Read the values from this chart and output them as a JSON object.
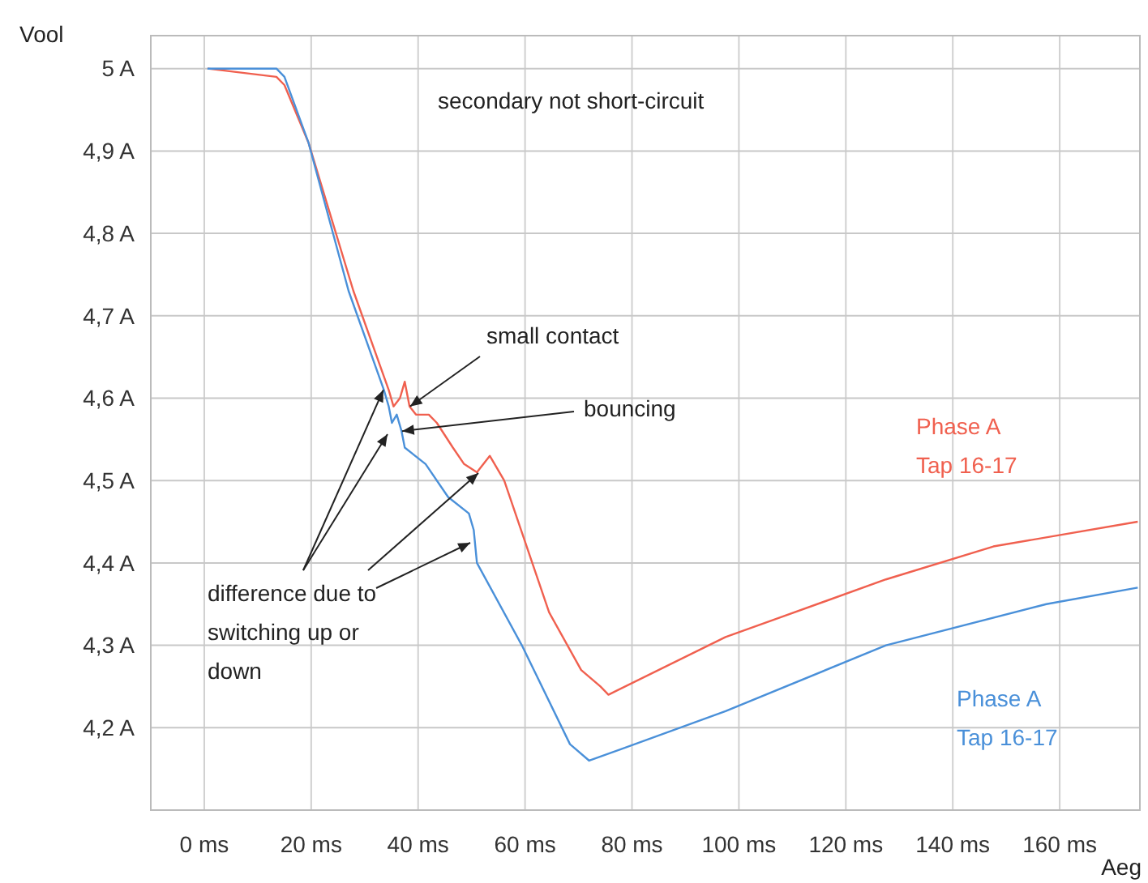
{
  "chart_data": {
    "type": "line",
    "xlabel": "Aeg",
    "ylabel": "Vool",
    "xlim": [
      -10,
      175
    ],
    "xticks": [
      {
        "value": 0,
        "label": "0 ms"
      },
      {
        "value": 20,
        "label": "20 ms"
      },
      {
        "value": 40,
        "label": "40 ms"
      },
      {
        "value": 60,
        "label": "60 ms"
      },
      {
        "value": 80,
        "label": "80 ms"
      },
      {
        "value": 100,
        "label": "100 ms"
      },
      {
        "value": 120,
        "label": "120 ms"
      },
      {
        "value": 140,
        "label": "140 ms"
      },
      {
        "value": 160,
        "label": "160 ms"
      }
    ],
    "ylim": [
      4.1,
      5.04
    ],
    "yticks": [
      {
        "value": 4.1,
        "label": null
      },
      {
        "value": 4.2,
        "label": "4,2 A"
      },
      {
        "value": 4.3,
        "label": "4,3 A"
      },
      {
        "value": 4.4,
        "label": "4,4 A"
      },
      {
        "value": 4.5,
        "label": "4,5 A"
      },
      {
        "value": 4.6,
        "label": "4,6 A"
      },
      {
        "value": 4.7,
        "label": "4,7 A"
      },
      {
        "value": 4.8,
        "label": "4,8 A"
      },
      {
        "value": 4.9,
        "label": "4,9 A"
      },
      {
        "value": 5,
        "label": "5 A"
      }
    ],
    "grid": true,
    "series": [
      {
        "name": "Phase A Tap 16-17",
        "color": "#f0604f",
        "x": [
          0.6,
          13.5,
          15,
          19.5,
          27.9,
          34.5,
          35.4,
          36.6,
          37.5,
          38.4,
          39.6,
          40.5,
          42,
          43.5,
          46.5,
          48.6,
          51,
          53.4,
          56.1,
          64.5,
          70.5,
          74.1,
          75.6,
          97.5,
          127.5,
          147.6,
          174.6
        ],
        "values": [
          5.0,
          4.99,
          4.98,
          4.91,
          4.73,
          4.61,
          4.59,
          4.6,
          4.62,
          4.59,
          4.58,
          4.58,
          4.58,
          4.57,
          4.54,
          4.52,
          4.51,
          4.53,
          4.5,
          4.34,
          4.27,
          4.25,
          4.24,
          4.31,
          4.38,
          4.42,
          4.45
        ]
      },
      {
        "name": "Phase A Tap 16-17",
        "color": "#4a90d9",
        "x": [
          0.6,
          13.5,
          15,
          19.5,
          27,
          33.6,
          34.5,
          35.1,
          36,
          36.9,
          37.5,
          41.4,
          45.6,
          49.5,
          50.4,
          51,
          59.4,
          68.4,
          72,
          97.5,
          127.5,
          157.5,
          174.6
        ],
        "values": [
          5.0,
          5.0,
          4.99,
          4.91,
          4.73,
          4.61,
          4.59,
          4.57,
          4.58,
          4.56,
          4.54,
          4.52,
          4.48,
          4.46,
          4.44,
          4.4,
          4.3,
          4.18,
          4.16,
          4.22,
          4.3,
          4.35,
          4.37
        ]
      }
    ],
    "annotations": [
      "secondary not short-circuit",
      {
        "text": "small contact",
        "x": 38.5,
        "y": 4.59
      },
      {
        "text": "bouncing",
        "x": 37,
        "y": 4.56
      },
      {
        "text": "difference due to switching up or down",
        "x": 33.5,
        "y": 4.61
      }
    ]
  }
}
